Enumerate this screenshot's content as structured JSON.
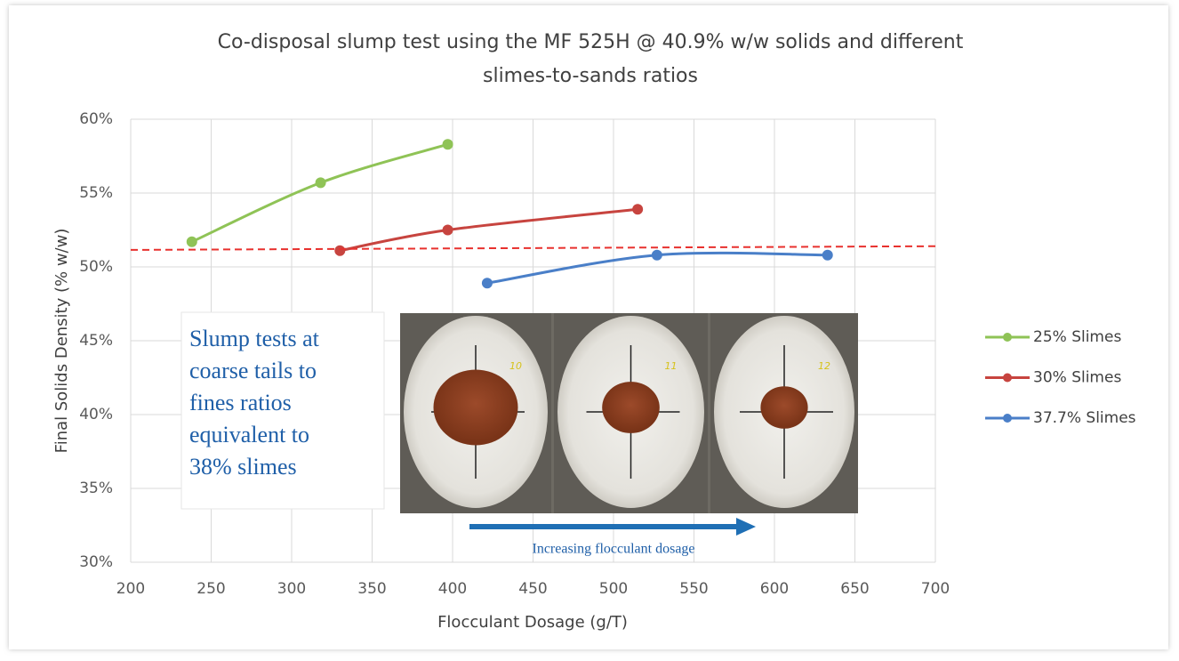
{
  "chart_data": {
    "type": "line",
    "title": [
      "Co-disposal slump test using the MF 525H @ 40.9% w/w solids and different",
      "slimes-to-sands ratios"
    ],
    "x_label": "Flocculant Dosage (g/T)",
    "y_label": "Final Solids Density (% w/w)",
    "xlim": [
      200,
      700
    ],
    "xticks": [
      200,
      250,
      300,
      350,
      400,
      450,
      500,
      550,
      600,
      650,
      700
    ],
    "ylim": [
      30,
      60
    ],
    "yticks": [
      {
        "value": 30,
        "label": "30%"
      },
      {
        "value": 35,
        "label": "35%"
      },
      {
        "value": 40,
        "label": "40%"
      },
      {
        "value": 45,
        "label": "45%"
      },
      {
        "value": 50,
        "label": "50%"
      },
      {
        "value": 55,
        "label": "55%"
      },
      {
        "value": 60,
        "label": "60%"
      }
    ],
    "grid": true,
    "legend": "right",
    "series": [
      {
        "name": "25% Slimes",
        "color": "#8fc356",
        "x": [
          238,
          318,
          397
        ],
        "values": [
          51.7,
          55.7,
          58.3
        ]
      },
      {
        "name": "30% Slimes",
        "color": "#c7443f",
        "x": [
          330,
          397,
          515
        ],
        "values": [
          51.1,
          52.5,
          53.9
        ]
      },
      {
        "name": "37.7% Slimes",
        "color": "#4a7fc8",
        "x": [
          421.5,
          527,
          633
        ],
        "values": [
          48.9,
          50.8,
          50.8
        ]
      }
    ],
    "reference_line": {
      "color": "#e8312e",
      "x": [
        200,
        700
      ],
      "values": [
        51.15,
        51.4
      ]
    },
    "annotation": [
      "Slump tests at",
      "coarse tails to",
      "fines ratios",
      "equivalent to",
      "38% slimes"
    ],
    "photo_labels": [
      "10",
      "11",
      "12"
    ],
    "arrow_label": "Increasing flocculant dosage"
  }
}
